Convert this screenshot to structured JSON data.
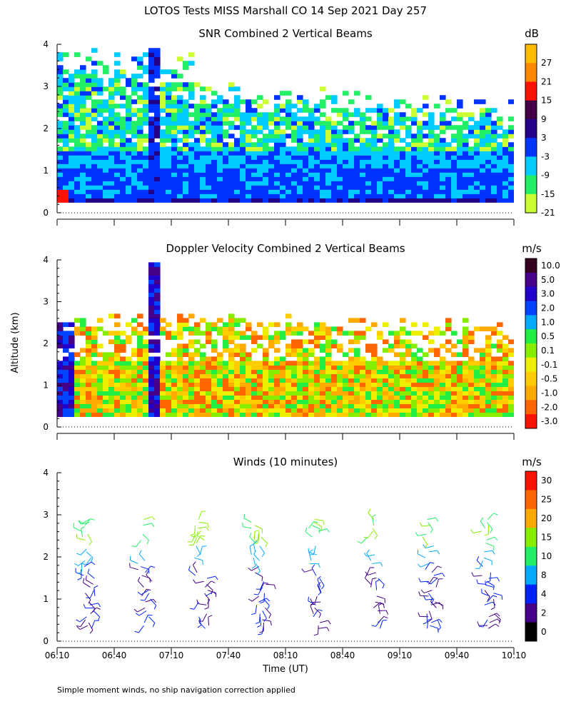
{
  "figure": {
    "title": "LOTOS Tests MISS Marshall CO  14 Sep 2021 Day 257",
    "ylabel": "Altitude (km)",
    "xlabel": "Time (UT)",
    "footnote": "Simple moment winds, no ship navigation correction applied"
  },
  "chart_data": [
    {
      "type": "heatmap",
      "title": "SNR Combined 2 Vertical Beams",
      "unit": "dB",
      "xlim": [
        "06:10",
        "10:10"
      ],
      "ylim": [
        0,
        4
      ],
      "yticks": [
        "0",
        "1",
        "2",
        "3",
        "4"
      ],
      "colorbar": {
        "levels": [
          "-21",
          "-15",
          "-9",
          "-3",
          "3",
          "9",
          "15",
          "21",
          "27"
        ],
        "colors": [
          "#ccff33",
          "#22ee66",
          "#00ccff",
          "#0033ff",
          "#220088",
          "#440044",
          "#ff1100",
          "#ff8800",
          "#ffbb00"
        ]
      }
    },
    {
      "type": "heatmap",
      "title": "Doppler Velocity Combined 2 Vertical Beams",
      "unit": "m/s",
      "xlim": [
        "06:10",
        "10:10"
      ],
      "ylim": [
        0,
        4
      ],
      "yticks": [
        "0",
        "1",
        "2",
        "3",
        "4"
      ],
      "colorbar": {
        "levels": [
          "10.0",
          "5.0",
          "3.0",
          "2.0",
          "1.0",
          "0.5",
          "0.1",
          "-0.1",
          "-0.5",
          "-1.0",
          "-2.0",
          "-3.0"
        ],
        "colors": [
          "#330022",
          "#440088",
          "#2200cc",
          "#0044ff",
          "#00aaff",
          "#22ee44",
          "#88ee00",
          "#eeee00",
          "#ffcc00",
          "#ffaa00",
          "#ff6600",
          "#ff1100"
        ]
      }
    },
    {
      "type": "scatter",
      "title": "Winds (10 minutes)",
      "unit": "m/s",
      "xlim": [
        "06:10",
        "10:10"
      ],
      "xticks": [
        "06:10",
        "06:40",
        "07:10",
        "07:40",
        "08:10",
        "08:40",
        "09:10",
        "09:40",
        "10:10"
      ],
      "ylim": [
        0,
        4
      ],
      "yticks": [
        "0",
        "1",
        "2",
        "3",
        "4"
      ],
      "profile_times": [
        "06:25",
        "06:55",
        "07:25",
        "07:55",
        "08:25",
        "08:55",
        "09:25",
        "09:55"
      ],
      "colorbar": {
        "levels": [
          "30",
          "25",
          "20",
          "15",
          "10",
          "8",
          "4",
          "2",
          "0"
        ],
        "colors": [
          "#ff1100",
          "#ff6600",
          "#ffaa00",
          "#88ee00",
          "#22ee66",
          "#00aaff",
          "#0022ff",
          "#440088",
          "#000000"
        ]
      }
    }
  ]
}
